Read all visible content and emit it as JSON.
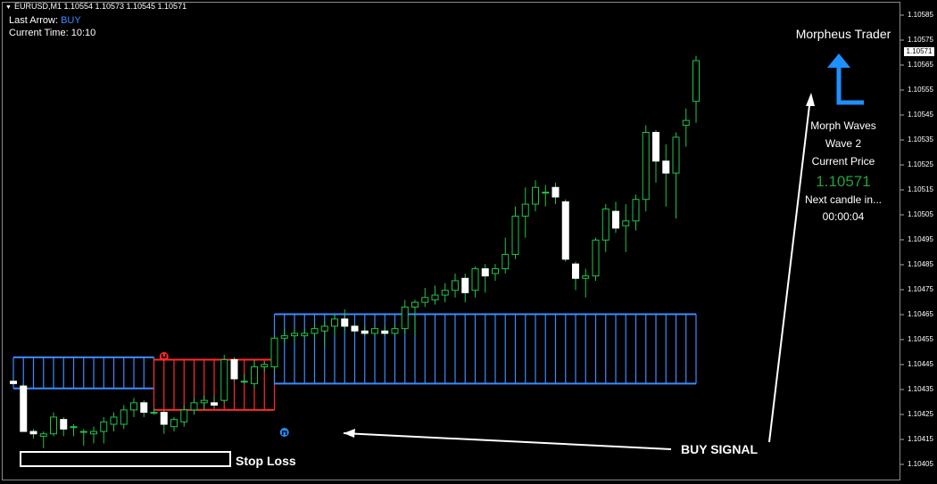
{
  "header": {
    "symbol_line": "EURUSD,M1  1.10554 1.10573 1.10545 1.10571"
  },
  "info": {
    "last_arrow_label": "Last Arrow:",
    "last_arrow_value": "BUY",
    "current_time_label": "Current Time:",
    "current_time_value": "10:10"
  },
  "panel": {
    "title": "Morpheus Trader",
    "wave_name": "Morph Waves",
    "wave_number": "Wave 2",
    "price_label": "Current Price",
    "price_value": "1.10571",
    "next_candle_label": "Next candle in...",
    "countdown": "00:00:04",
    "arrow_icon": "up-arrow-icon",
    "arrow_color": "#1e90ff"
  },
  "annotations": {
    "stop_loss": "Stop Loss",
    "buy_signal": "BUY SIGNAL"
  },
  "price_axis": {
    "labels": [
      "1.10585",
      "1.10575",
      "1.10571",
      "1.10565",
      "1.10555",
      "1.10545",
      "1.10535",
      "1.10525",
      "1.10515",
      "1.10505",
      "1.10495",
      "1.10485",
      "1.10475",
      "1.10465",
      "1.10455",
      "1.10445",
      "1.10435",
      "1.10425",
      "1.10415",
      "1.10405"
    ],
    "current_tag": "1.10571"
  },
  "colors": {
    "bull_candle": "#21c34a",
    "bear_candle": "#ffffff",
    "cloud_blue": "#3d8bff",
    "cloud_red": "#ff2a2a",
    "signal_buy": "#1e90ff",
    "signal_sell": "#ff2a2a"
  },
  "chart_data": {
    "type": "candlestick",
    "symbol": "EURUSD",
    "timeframe": "M1",
    "ylim": [
      1.104,
      1.1059
    ],
    "candles": [
      {
        "o": 1.10437,
        "h": 1.10438,
        "l": 1.10437,
        "c": 1.10436
      },
      {
        "o": 1.10435,
        "h": 1.10436,
        "l": 1.10416,
        "c": 1.10416
      },
      {
        "o": 1.10416,
        "h": 1.10417,
        "l": 1.10413,
        "c": 1.10415
      },
      {
        "o": 1.10414,
        "h": 1.10416,
        "l": 1.10409,
        "c": 1.10415
      },
      {
        "o": 1.10415,
        "h": 1.10424,
        "l": 1.10414,
        "c": 1.10422
      },
      {
        "o": 1.10421,
        "h": 1.10422,
        "l": 1.10414,
        "c": 1.10417
      },
      {
        "o": 1.10418,
        "h": 1.10419,
        "l": 1.10414,
        "c": 1.10418
      },
      {
        "o": 1.10416,
        "h": 1.10417,
        "l": 1.1041,
        "c": 1.10416
      },
      {
        "o": 1.10415,
        "h": 1.10418,
        "l": 1.10411,
        "c": 1.10416
      },
      {
        "o": 1.10416,
        "h": 1.10422,
        "l": 1.10411,
        "c": 1.1042
      },
      {
        "o": 1.10419,
        "h": 1.10424,
        "l": 1.10416,
        "c": 1.10422
      },
      {
        "o": 1.10419,
        "h": 1.10427,
        "l": 1.10417,
        "c": 1.10425
      },
      {
        "o": 1.10425,
        "h": 1.1043,
        "l": 1.10422,
        "c": 1.10428
      },
      {
        "o": 1.10428,
        "h": 1.10429,
        "l": 1.10422,
        "c": 1.10424
      },
      {
        "o": 1.10424,
        "h": 1.10426,
        "l": 1.10423,
        "c": 1.10424
      },
      {
        "o": 1.10424,
        "h": 1.10425,
        "l": 1.10415,
        "c": 1.10419
      },
      {
        "o": 1.10418,
        "h": 1.10422,
        "l": 1.10416,
        "c": 1.10421
      },
      {
        "o": 1.1042,
        "h": 1.10427,
        "l": 1.10418,
        "c": 1.10425
      },
      {
        "o": 1.10425,
        "h": 1.1043,
        "l": 1.10423,
        "c": 1.10428
      },
      {
        "o": 1.10428,
        "h": 1.10431,
        "l": 1.10425,
        "c": 1.10429
      },
      {
        "o": 1.10428,
        "h": 1.10431,
        "l": 1.10426,
        "c": 1.10427
      },
      {
        "o": 1.10429,
        "h": 1.10448,
        "l": 1.10428,
        "c": 1.10446
      },
      {
        "o": 1.10446,
        "h": 1.10447,
        "l": 1.10437,
        "c": 1.10438
      },
      {
        "o": 1.10437,
        "h": 1.1044,
        "l": 1.10436,
        "c": 1.10437
      },
      {
        "o": 1.10436,
        "h": 1.10446,
        "l": 1.10434,
        "c": 1.10443
      },
      {
        "o": 1.10443,
        "h": 1.10445,
        "l": 1.10441,
        "c": 1.10444
      },
      {
        "o": 1.10443,
        "h": 1.10456,
        "l": 1.10441,
        "c": 1.10455
      },
      {
        "o": 1.10455,
        "h": 1.10459,
        "l": 1.10453,
        "c": 1.10456
      },
      {
        "o": 1.10456,
        "h": 1.10459,
        "l": 1.10454,
        "c": 1.10457
      },
      {
        "o": 1.10456,
        "h": 1.10459,
        "l": 1.10455,
        "c": 1.10457
      },
      {
        "o": 1.10457,
        "h": 1.10461,
        "l": 1.10455,
        "c": 1.10459
      },
      {
        "o": 1.10458,
        "h": 1.10462,
        "l": 1.10451,
        "c": 1.1046
      },
      {
        "o": 1.1046,
        "h": 1.10465,
        "l": 1.10456,
        "c": 1.10463
      },
      {
        "o": 1.10463,
        "h": 1.10467,
        "l": 1.10458,
        "c": 1.1046
      },
      {
        "o": 1.1046,
        "h": 1.10461,
        "l": 1.10457,
        "c": 1.10458
      },
      {
        "o": 1.10458,
        "h": 1.1046,
        "l": 1.10456,
        "c": 1.10457
      },
      {
        "o": 1.10457,
        "h": 1.1046,
        "l": 1.10456,
        "c": 1.10459
      },
      {
        "o": 1.10458,
        "h": 1.1046,
        "l": 1.10456,
        "c": 1.10457
      },
      {
        "o": 1.10457,
        "h": 1.10461,
        "l": 1.10456,
        "c": 1.10459
      },
      {
        "o": 1.10459,
        "h": 1.10471,
        "l": 1.10457,
        "c": 1.10468
      },
      {
        "o": 1.10468,
        "h": 1.10471,
        "l": 1.10456,
        "c": 1.1047
      },
      {
        "o": 1.1047,
        "h": 1.10476,
        "l": 1.10468,
        "c": 1.10472
      },
      {
        "o": 1.10471,
        "h": 1.10477,
        "l": 1.10469,
        "c": 1.10473
      },
      {
        "o": 1.10473,
        "h": 1.10478,
        "l": 1.1047,
        "c": 1.10475
      },
      {
        "o": 1.10475,
        "h": 1.10482,
        "l": 1.10472,
        "c": 1.10479
      },
      {
        "o": 1.1048,
        "h": 1.10482,
        "l": 1.1047,
        "c": 1.10474
      },
      {
        "o": 1.10475,
        "h": 1.10485,
        "l": 1.10472,
        "c": 1.10484
      },
      {
        "o": 1.10484,
        "h": 1.10486,
        "l": 1.10474,
        "c": 1.10481
      },
      {
        "o": 1.10482,
        "h": 1.10486,
        "l": 1.10479,
        "c": 1.10484
      },
      {
        "o": 1.10484,
        "h": 1.10497,
        "l": 1.10482,
        "c": 1.1049
      },
      {
        "o": 1.1049,
        "h": 1.1051,
        "l": 1.10488,
        "c": 1.10506
      },
      {
        "o": 1.10506,
        "h": 1.10518,
        "l": 1.10497,
        "c": 1.10511
      },
      {
        "o": 1.10511,
        "h": 1.10521,
        "l": 1.10508,
        "c": 1.10518
      },
      {
        "o": 1.10516,
        "h": 1.10519,
        "l": 1.1051,
        "c": 1.10516
      },
      {
        "o": 1.10518,
        "h": 1.1052,
        "l": 1.10511,
        "c": 1.10514
      },
      {
        "o": 1.10512,
        "h": 1.10513,
        "l": 1.10487,
        "c": 1.10488
      },
      {
        "o": 1.10486,
        "h": 1.10487,
        "l": 1.10475,
        "c": 1.1048
      },
      {
        "o": 1.1048,
        "h": 1.10484,
        "l": 1.10472,
        "c": 1.10481
      },
      {
        "o": 1.10481,
        "h": 1.10497,
        "l": 1.10479,
        "c": 1.10496
      },
      {
        "o": 1.10496,
        "h": 1.10511,
        "l": 1.10491,
        "c": 1.10509
      },
      {
        "o": 1.10508,
        "h": 1.10512,
        "l": 1.10499,
        "c": 1.10501
      },
      {
        "o": 1.10502,
        "h": 1.10511,
        "l": 1.10491,
        "c": 1.10504
      },
      {
        "o": 1.10504,
        "h": 1.10515,
        "l": 1.105,
        "c": 1.10513
      },
      {
        "o": 1.10513,
        "h": 1.10544,
        "l": 1.10508,
        "c": 1.10541
      },
      {
        "o": 1.10541,
        "h": 1.10542,
        "l": 1.1052,
        "c": 1.10529
      },
      {
        "o": 1.10529,
        "h": 1.10536,
        "l": 1.1051,
        "c": 1.10524
      },
      {
        "o": 1.10524,
        "h": 1.10541,
        "l": 1.10505,
        "c": 1.10539
      },
      {
        "o": 1.10544,
        "h": 1.10551,
        "l": 1.10535,
        "c": 1.10546
      },
      {
        "o": 1.10554,
        "h": 1.10573,
        "l": 1.10545,
        "c": 1.10571
      }
    ],
    "cloud": {
      "description": "Morph Waves band; segments of blue (bullish) and red (bearish)",
      "segments": [
        {
          "color": "blue",
          "from": 0,
          "to": 14,
          "top": 1.10447,
          "bottom": 1.10434
        },
        {
          "color": "red",
          "from": 14,
          "to": 26,
          "top": 1.10446,
          "bottom": 1.10425
        },
        {
          "color": "blue",
          "from": 26,
          "to": 68,
          "top": 1.10436,
          "bottom": 1.10465
        }
      ]
    },
    "signals": [
      {
        "type": "sell",
        "index": 15
      },
      {
        "type": "buy",
        "index": 27
      }
    ]
  }
}
